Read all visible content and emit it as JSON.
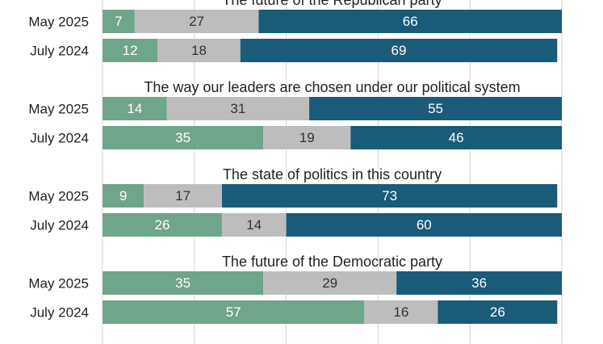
{
  "chart_data": {
    "type": "bar",
    "orientation": "horizontal",
    "stacked": true,
    "grid": true,
    "colors": [
      "#6fa58a",
      "#bdbdbd",
      "#1a5b7a"
    ],
    "label_colors": [
      "#ffffff",
      "#333333",
      "#ffffff"
    ],
    "xlim": [
      0,
      100
    ],
    "groups": [
      {
        "title": "The future of the Republican party",
        "rows": [
          {
            "label": "May 2025",
            "values": [
              7,
              27,
              66
            ]
          },
          {
            "label": "July 2024",
            "values": [
              12,
              18,
              69
            ]
          }
        ]
      },
      {
        "title": "The way our leaders are chosen under our political system",
        "rows": [
          {
            "label": "May 2025",
            "values": [
              14,
              31,
              55
            ]
          },
          {
            "label": "July 2024",
            "values": [
              35,
              19,
              46
            ]
          }
        ]
      },
      {
        "title": "The state of politics in this country",
        "rows": [
          {
            "label": "May 2025",
            "values": [
              9,
              17,
              73
            ]
          },
          {
            "label": "July 2024",
            "values": [
              26,
              14,
              60
            ]
          }
        ]
      },
      {
        "title": "The future of the Democratic party",
        "rows": [
          {
            "label": "May 2025",
            "values": [
              35,
              29,
              36
            ]
          },
          {
            "label": "July 2024",
            "values": [
              57,
              16,
              26
            ]
          }
        ]
      }
    ]
  }
}
